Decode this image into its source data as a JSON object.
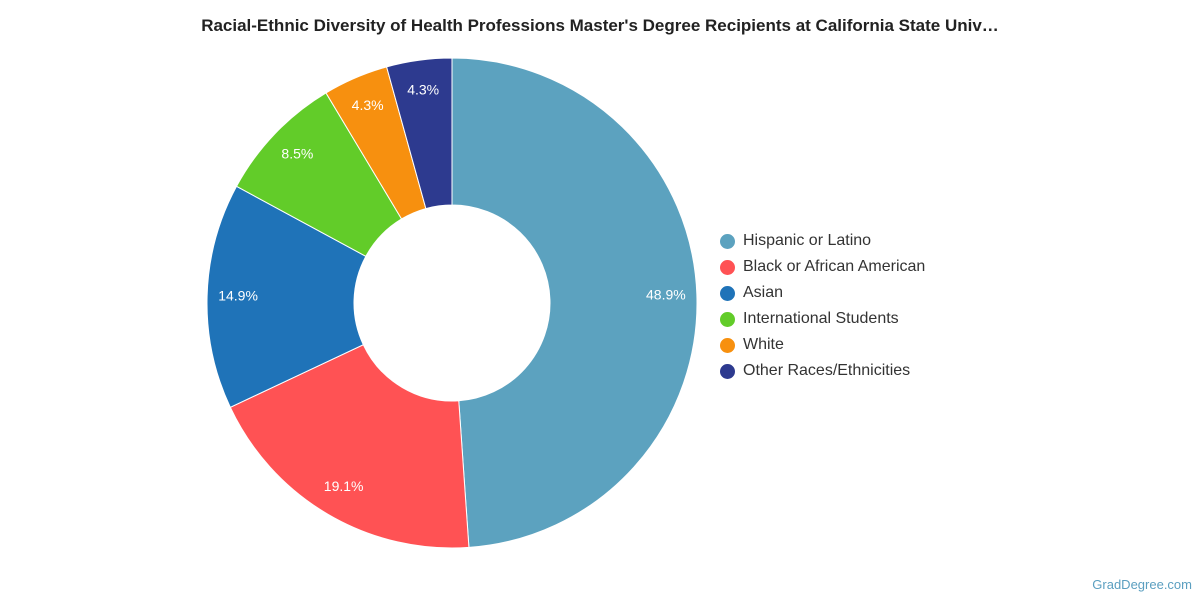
{
  "chart_data": {
    "type": "pie",
    "title": "Racial-Ethnic Diversity of Health Professions Master's Degree Recipients at California State Univ…",
    "donut": true,
    "legend_position": "right",
    "slices": [
      {
        "label": "Hispanic or Latino",
        "value": 48.9,
        "display": "48.9%",
        "color": "#5ca2bf"
      },
      {
        "label": "Black or African American",
        "value": 19.1,
        "display": "19.1%",
        "color": "#ff5254"
      },
      {
        "label": "Asian",
        "value": 14.9,
        "display": "14.9%",
        "color": "#1f73b8"
      },
      {
        "label": "International Students",
        "value": 8.5,
        "display": "8.5%",
        "color": "#62cc29"
      },
      {
        "label": "White",
        "value": 4.3,
        "display": "4.3%",
        "color": "#f7900f"
      },
      {
        "label": "Other Races/Ethnicities",
        "value": 4.3,
        "display": "4.3%",
        "color": "#2d3a8f"
      }
    ]
  },
  "watermark": "GradDegree.com"
}
